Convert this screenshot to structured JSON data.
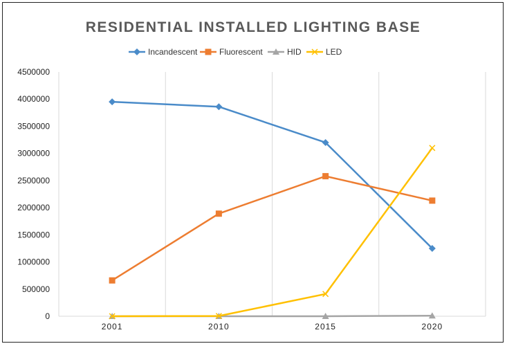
{
  "chart_data": {
    "type": "line",
    "title": "RESIDENTIAL INSTALLED LIGHTING BASE",
    "xlabel": "",
    "ylabel": "",
    "categories": [
      "2001",
      "2010",
      "2015",
      "2020"
    ],
    "ylim": [
      0,
      4500000
    ],
    "yticks": [
      "0",
      "500000",
      "1000000",
      "1500000",
      "2000000",
      "2500000",
      "3000000",
      "3500000",
      "4000000",
      "4500000"
    ],
    "grid": "vertical",
    "legend": "top",
    "series": [
      {
        "name": "Incandescent",
        "color": "#4a8bc9",
        "marker": "diamond",
        "values": [
          3950000,
          3860000,
          3200000,
          1250000
        ]
      },
      {
        "name": "Fluorescent",
        "color": "#ed7d31",
        "marker": "square",
        "values": [
          660000,
          1890000,
          2580000,
          2130000
        ]
      },
      {
        "name": "HID",
        "color": "#a5a5a5",
        "marker": "triangle",
        "values": [
          0,
          0,
          0,
          10000
        ]
      },
      {
        "name": "LED",
        "color": "#ffc000",
        "marker": "x",
        "values": [
          0,
          5000,
          410000,
          3100000
        ]
      }
    ]
  }
}
